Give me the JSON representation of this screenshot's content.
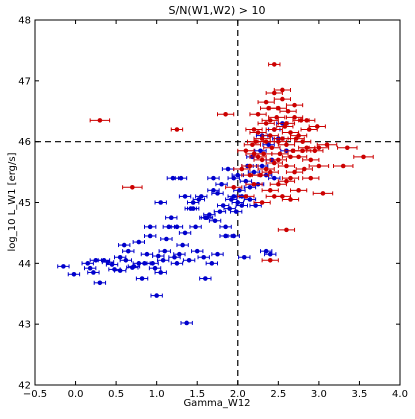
{
  "chart_data": {
    "type": "scatter",
    "title": "S/N(W1,W2) > 10",
    "xlabel": "Gamma_W12",
    "ylabel": "log_10 L_W1 [erg/s]",
    "xlim": [
      -0.5,
      4.0
    ],
    "ylim": [
      42,
      48
    ],
    "xticks": [
      "−0.5",
      "0.0",
      "0.5",
      "1.0",
      "1.5",
      "2.0",
      "2.5",
      "3.0",
      "3.5",
      "4.0"
    ],
    "yticks": [
      "42",
      "43",
      "44",
      "45",
      "46",
      "47",
      "48"
    ],
    "grid": false,
    "reference_lines": {
      "vertical_x": 2.0,
      "horizontal_y": 46.0,
      "style": "dashed"
    },
    "colors": {
      "blue_series": "#0000cc",
      "red_series": "#cc0000"
    },
    "series": [
      {
        "color": "#0000cc",
        "points": [
          [
            -0.15,
            43.95,
            0.07
          ],
          [
            -0.02,
            43.82,
            0.07
          ],
          [
            0.15,
            44.0,
            0.07
          ],
          [
            0.18,
            43.92,
            0.07
          ],
          [
            0.22,
            43.85,
            0.07
          ],
          [
            0.3,
            43.68,
            0.07
          ],
          [
            0.35,
            44.05,
            0.07
          ],
          [
            0.4,
            44.02,
            0.07
          ],
          [
            0.45,
            43.98,
            0.07
          ],
          [
            0.48,
            43.9,
            0.07
          ],
          [
            0.55,
            44.1,
            0.07
          ],
          [
            0.55,
            43.88,
            0.07
          ],
          [
            0.6,
            44.3,
            0.07
          ],
          [
            0.62,
            44.05,
            0.07
          ],
          [
            0.7,
            43.93,
            0.07
          ],
          [
            0.78,
            44.0,
            0.07
          ],
          [
            0.82,
            43.75,
            0.07
          ],
          [
            0.88,
            44.15,
            0.07
          ],
          [
            0.92,
            44.45,
            0.07
          ],
          [
            0.95,
            44.0,
            0.07
          ],
          [
            0.98,
            43.92,
            0.07
          ],
          [
            1.0,
            43.47,
            0.07
          ],
          [
            1.02,
            44.12,
            0.07
          ],
          [
            1.05,
            43.85,
            0.07
          ],
          [
            1.08,
            44.05,
            0.07
          ],
          [
            1.1,
            44.2,
            0.07
          ],
          [
            1.12,
            44.4,
            0.07
          ],
          [
            1.15,
            44.6,
            0.07
          ],
          [
            1.18,
            44.75,
            0.07
          ],
          [
            1.22,
            44.1,
            0.07
          ],
          [
            1.25,
            44.0,
            0.07
          ],
          [
            1.28,
            44.15,
            0.07
          ],
          [
            1.32,
            44.3,
            0.07
          ],
          [
            1.35,
            44.5,
            0.07
          ],
          [
            1.37,
            43.02,
            0.07
          ],
          [
            1.4,
            44.05,
            0.07
          ],
          [
            1.42,
            44.9,
            0.07
          ],
          [
            1.45,
            45.0,
            0.07
          ],
          [
            1.48,
            44.6,
            0.07
          ],
          [
            1.5,
            44.2,
            0.07
          ],
          [
            1.52,
            45.05,
            0.07
          ],
          [
            1.55,
            45.1,
            0.07
          ],
          [
            1.58,
            44.1,
            0.07
          ],
          [
            1.6,
            43.75,
            0.07
          ],
          [
            1.62,
            44.75,
            0.07
          ],
          [
            1.65,
            44.8,
            0.07
          ],
          [
            1.68,
            44.0,
            0.07
          ],
          [
            1.7,
            45.2,
            0.07
          ],
          [
            1.72,
            44.7,
            0.07
          ],
          [
            1.75,
            44.15,
            0.07
          ],
          [
            1.78,
            44.85,
            0.07
          ],
          [
            1.8,
            45.3,
            0.07
          ],
          [
            1.82,
            44.95,
            0.07
          ],
          [
            1.85,
            44.6,
            0.07
          ],
          [
            1.88,
            45.55,
            0.07
          ],
          [
            1.9,
            44.9,
            0.07
          ],
          [
            1.92,
            45.05,
            0.07
          ],
          [
            1.95,
            44.45,
            0.07
          ],
          [
            1.95,
            45.4,
            0.07
          ],
          [
            1.98,
            44.85,
            0.07
          ],
          [
            2.0,
            45.0,
            0.07
          ],
          [
            2.02,
            45.2,
            0.07
          ],
          [
            2.05,
            45.1,
            0.07
          ],
          [
            2.05,
            44.95,
            0.07
          ],
          [
            2.08,
            44.1,
            0.07
          ],
          [
            2.1,
            45.35,
            0.07
          ],
          [
            2.12,
            45.6,
            0.07
          ],
          [
            2.15,
            45.25,
            0.07
          ],
          [
            2.18,
            45.75,
            0.07
          ],
          [
            2.2,
            45.5,
            0.07
          ],
          [
            2.22,
            44.95,
            0.07
          ],
          [
            2.25,
            45.3,
            0.07
          ],
          [
            2.28,
            45.85,
            0.07
          ],
          [
            2.3,
            45.6,
            0.07
          ],
          [
            2.35,
            45.45,
            0.07
          ],
          [
            2.35,
            44.2,
            0.07
          ],
          [
            2.38,
            45.95,
            0.07
          ],
          [
            2.4,
            44.15,
            0.07
          ],
          [
            2.42,
            45.7,
            0.07
          ],
          [
            2.45,
            46.2,
            0.07
          ],
          [
            1.3,
            45.4,
            0.07
          ],
          [
            1.2,
            45.4,
            0.07
          ],
          [
            1.05,
            45.0,
            0.07
          ],
          [
            0.92,
            44.6,
            0.07
          ],
          [
            0.78,
            44.35,
            0.07
          ],
          [
            0.65,
            44.2,
            0.07
          ],
          [
            1.35,
            45.1,
            0.07
          ],
          [
            1.6,
            44.75,
            0.07
          ],
          [
            1.75,
            45.15,
            0.07
          ],
          [
            2.0,
            45.45,
            0.07
          ],
          [
            1.7,
            45.4,
            0.07
          ],
          [
            2.6,
            45.85,
            0.07
          ],
          [
            2.5,
            46.05,
            0.07
          ],
          [
            2.45,
            45.4,
            0.07
          ],
          [
            1.45,
            44.9,
            0.07
          ],
          [
            1.25,
            44.6,
            0.07
          ],
          [
            0.85,
            44.0,
            0.07
          ],
          [
            0.72,
            43.95,
            0.07
          ],
          [
            0.25,
            44.05,
            0.07
          ],
          [
            1.85,
            44.45,
            0.07
          ],
          [
            1.95,
            45.1,
            0.07
          ],
          [
            2.15,
            45.05,
            0.07
          ],
          [
            2.3,
            46.1,
            0.07
          ],
          [
            2.55,
            46.3,
            0.07
          ]
        ]
      },
      {
        "color": "#cc0000",
        "points": [
          [
            0.3,
            46.35,
            0.12
          ],
          [
            0.7,
            45.25,
            0.12
          ],
          [
            1.25,
            46.2,
            0.07
          ],
          [
            1.85,
            46.45,
            0.1
          ],
          [
            1.95,
            45.25,
            0.1
          ],
          [
            2.05,
            45.55,
            0.1
          ],
          [
            2.1,
            45.85,
            0.1
          ],
          [
            2.15,
            45.6,
            0.1
          ],
          [
            2.18,
            45.95,
            0.1
          ],
          [
            2.2,
            45.3,
            0.1
          ],
          [
            2.22,
            46.0,
            0.1
          ],
          [
            2.25,
            45.75,
            0.1
          ],
          [
            2.28,
            45.45,
            0.1
          ],
          [
            2.3,
            46.05,
            0.1
          ],
          [
            2.32,
            45.8,
            0.1
          ],
          [
            2.35,
            46.3,
            0.1
          ],
          [
            2.35,
            45.55,
            0.1
          ],
          [
            2.38,
            46.55,
            0.1
          ],
          [
            2.4,
            46.1,
            0.1
          ],
          [
            2.4,
            45.2,
            0.1
          ],
          [
            2.42,
            45.9,
            0.1
          ],
          [
            2.45,
            47.27,
            0.07
          ],
          [
            2.45,
            46.8,
            0.1
          ],
          [
            2.45,
            45.65,
            0.1
          ],
          [
            2.48,
            46.4,
            0.1
          ],
          [
            2.5,
            46.0,
            0.1
          ],
          [
            2.5,
            45.3,
            0.1
          ],
          [
            2.52,
            45.8,
            0.1
          ],
          [
            2.55,
            46.7,
            0.1
          ],
          [
            2.55,
            45.1,
            0.1
          ],
          [
            2.58,
            46.25,
            0.1
          ],
          [
            2.6,
            45.95,
            0.1
          ],
          [
            2.6,
            45.6,
            0.1
          ],
          [
            2.62,
            46.5,
            0.1
          ],
          [
            2.65,
            46.15,
            0.1
          ],
          [
            2.65,
            45.4,
            0.1
          ],
          [
            2.68,
            45.85,
            0.1
          ],
          [
            2.7,
            46.6,
            0.1
          ],
          [
            2.72,
            46.05,
            0.1
          ],
          [
            2.75,
            45.75,
            0.1
          ],
          [
            2.75,
            45.2,
            0.1
          ],
          [
            2.78,
            46.35,
            0.1
          ],
          [
            2.8,
            46.0,
            0.1
          ],
          [
            2.82,
            45.55,
            0.1
          ],
          [
            2.85,
            45.9,
            0.1
          ],
          [
            2.88,
            46.2,
            0.1
          ],
          [
            2.9,
            45.7,
            0.1
          ],
          [
            2.95,
            45.85,
            0.1
          ],
          [
            2.98,
            46.25,
            0.1
          ],
          [
            3.0,
            45.6,
            0.12
          ],
          [
            3.05,
            45.15,
            0.12
          ],
          [
            3.1,
            45.95,
            0.12
          ],
          [
            3.3,
            45.6,
            0.12
          ],
          [
            3.35,
            45.9,
            0.12
          ],
          [
            3.55,
            45.75,
            0.12
          ],
          [
            2.6,
            44.55,
            0.1
          ],
          [
            2.4,
            44.05,
            0.1
          ],
          [
            2.3,
            45.0,
            0.1
          ],
          [
            2.35,
            46.65,
            0.1
          ],
          [
            2.25,
            46.45,
            0.1
          ],
          [
            2.2,
            46.2,
            0.1
          ],
          [
            2.55,
            46.85,
            0.1
          ],
          [
            2.7,
            46.4,
            0.1
          ],
          [
            2.45,
            45.1,
            0.1
          ],
          [
            2.65,
            45.05,
            0.1
          ],
          [
            2.5,
            46.55,
            0.1
          ],
          [
            2.4,
            46.35,
            0.1
          ],
          [
            2.3,
            45.7,
            0.1
          ],
          [
            2.6,
            45.35,
            0.1
          ],
          [
            2.7,
            45.5,
            0.1
          ],
          [
            2.8,
            45.85,
            0.1
          ],
          [
            2.15,
            45.45,
            0.1
          ],
          [
            2.25,
            46.15,
            0.1
          ],
          [
            2.35,
            46.0,
            0.1
          ],
          [
            2.5,
            45.7,
            0.1
          ],
          [
            2.65,
            45.75,
            0.1
          ],
          [
            2.45,
            46.2,
            0.1
          ],
          [
            2.55,
            46.05,
            0.1
          ],
          [
            2.75,
            46.1,
            0.1
          ],
          [
            2.85,
            46.35,
            0.1
          ],
          [
            2.9,
            45.4,
            0.1
          ],
          [
            3.0,
            45.9,
            0.12
          ],
          [
            2.1,
            45.1,
            0.1
          ],
          [
            2.2,
            45.8,
            0.1
          ],
          [
            2.4,
            45.5,
            0.1
          ],
          [
            2.6,
            46.3,
            0.1
          ]
        ]
      }
    ]
  }
}
